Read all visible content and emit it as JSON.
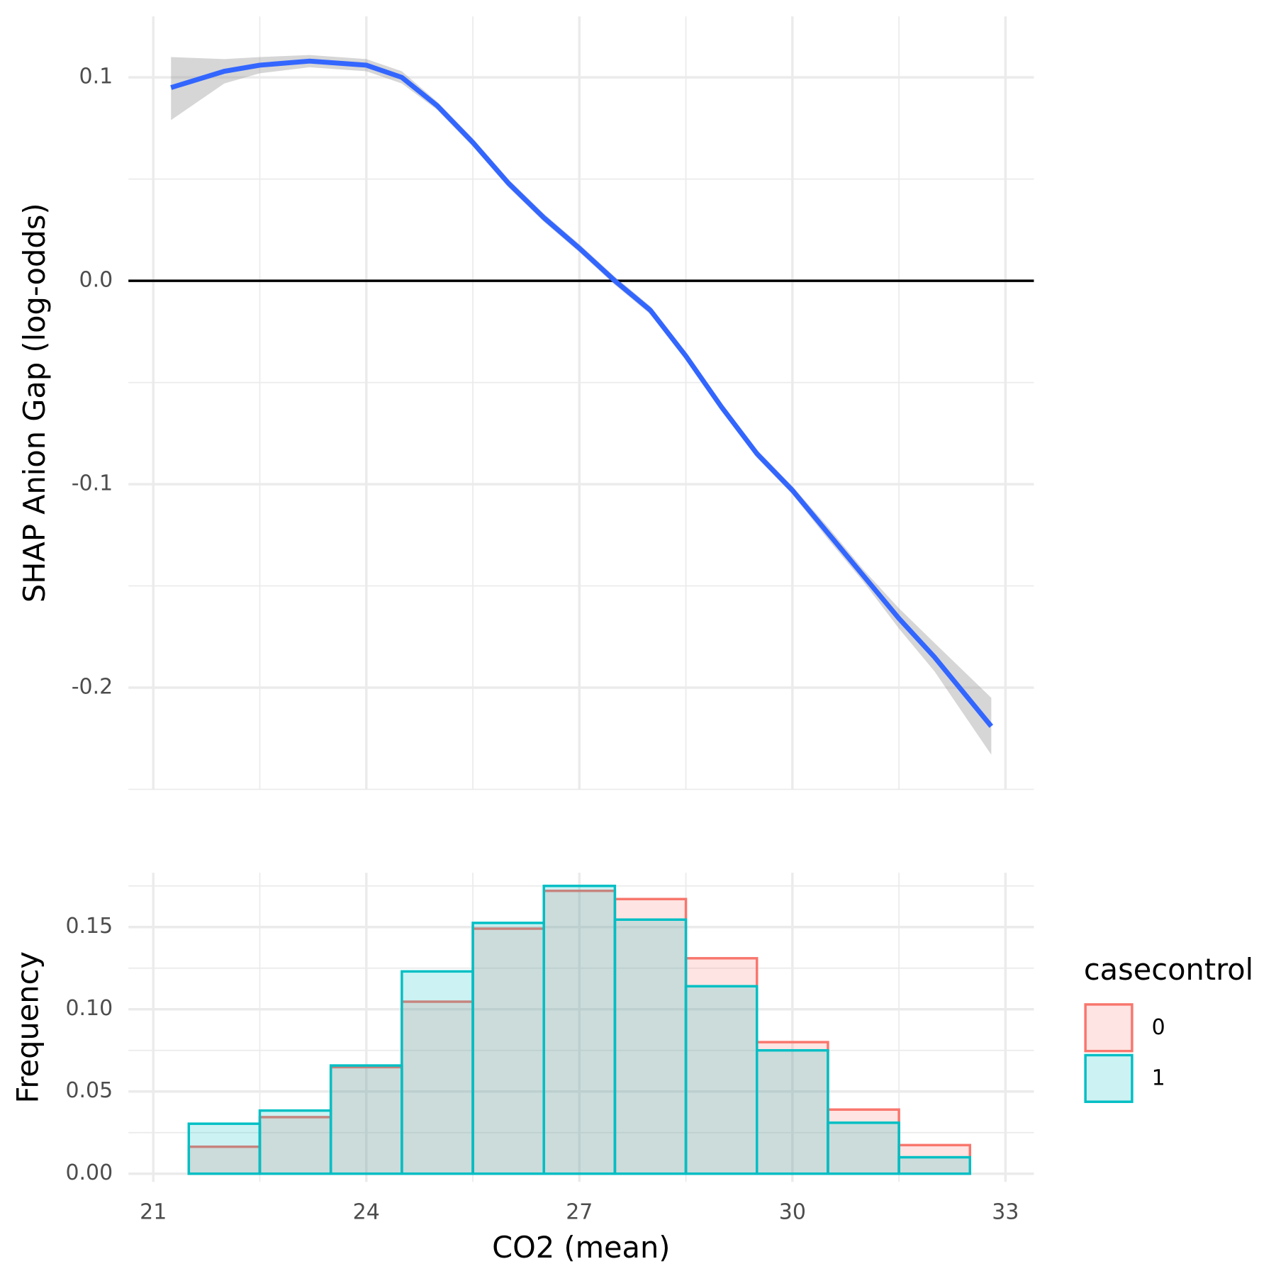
{
  "chart_data": [
    {
      "type": "line",
      "ylabel": "SHAP Anion Gap (log-odds)",
      "x": [
        21.25,
        22,
        22.5,
        23.2,
        24,
        24.5,
        25,
        25.5,
        26,
        26.5,
        27,
        27.5,
        28,
        28.5,
        29,
        29.5,
        30,
        30.5,
        31,
        31.5,
        32,
        32.8
      ],
      "values": [
        0.095,
        0.103,
        0.106,
        0.108,
        0.106,
        0.1,
        0.086,
        0.068,
        0.048,
        0.031,
        0.016,
        0.0,
        -0.0145,
        -0.037,
        -0.062,
        -0.085,
        -0.103,
        -0.124,
        -0.145,
        -0.166,
        -0.185,
        -0.219
      ],
      "upper": [
        0.11,
        0.109,
        0.11,
        0.111,
        0.109,
        0.103,
        0.088,
        0.07,
        0.05,
        0.033,
        0.018,
        0.002,
        -0.0125,
        -0.035,
        -0.06,
        -0.083,
        -0.101,
        -0.121,
        -0.142,
        -0.161,
        -0.178,
        -0.205
      ],
      "lower": [
        0.079,
        0.097,
        0.102,
        0.105,
        0.103,
        0.097,
        0.084,
        0.066,
        0.046,
        0.029,
        0.014,
        -0.002,
        -0.0165,
        -0.039,
        -0.064,
        -0.087,
        -0.105,
        -0.127,
        -0.148,
        -0.171,
        -0.192,
        -0.233
      ],
      "color": "#3366ff",
      "band_color": "#999999",
      "hline": 0,
      "xlim": [
        20.65,
        33.4
      ],
      "ylim": [
        -0.25,
        0.13
      ],
      "yticks": [
        0.1,
        {
          "value": 0,
          "label": "0.0"
        },
        -0.1,
        -0.2
      ],
      "grid": true
    },
    {
      "type": "histogram",
      "xlabel": "CO2 (mean)",
      "ylabel": "Frequency",
      "legend_title": "casecontrol",
      "legend": "right",
      "bins": [
        21.5,
        22.5,
        23.5,
        24.5,
        25.5,
        26.5,
        27.5,
        28.5,
        29.5,
        30.5,
        31.5,
        32.5
      ],
      "series": [
        {
          "name": "0",
          "color": "#F8766D",
          "values": [
            0.0164,
            0.0344,
            0.0648,
            0.1046,
            0.149,
            0.172,
            0.167,
            0.131,
            0.08,
            0.039,
            0.0174
          ]
        },
        {
          "name": "1",
          "color": "#00BFC4",
          "values": [
            0.0304,
            0.0384,
            0.0658,
            0.123,
            0.1525,
            0.175,
            0.1545,
            0.114,
            0.075,
            0.031,
            0.01
          ]
        }
      ],
      "xlim": [
        20.65,
        33.4
      ],
      "ylim": [
        -0.005,
        0.183
      ],
      "xticks": [
        21,
        24,
        27,
        30,
        33
      ],
      "yticks": [
        {
          "value": 0,
          "label": "0.00"
        },
        0.05,
        {
          "value": 0.1,
          "label": "0.10"
        },
        0.15
      ],
      "grid": true
    }
  ]
}
